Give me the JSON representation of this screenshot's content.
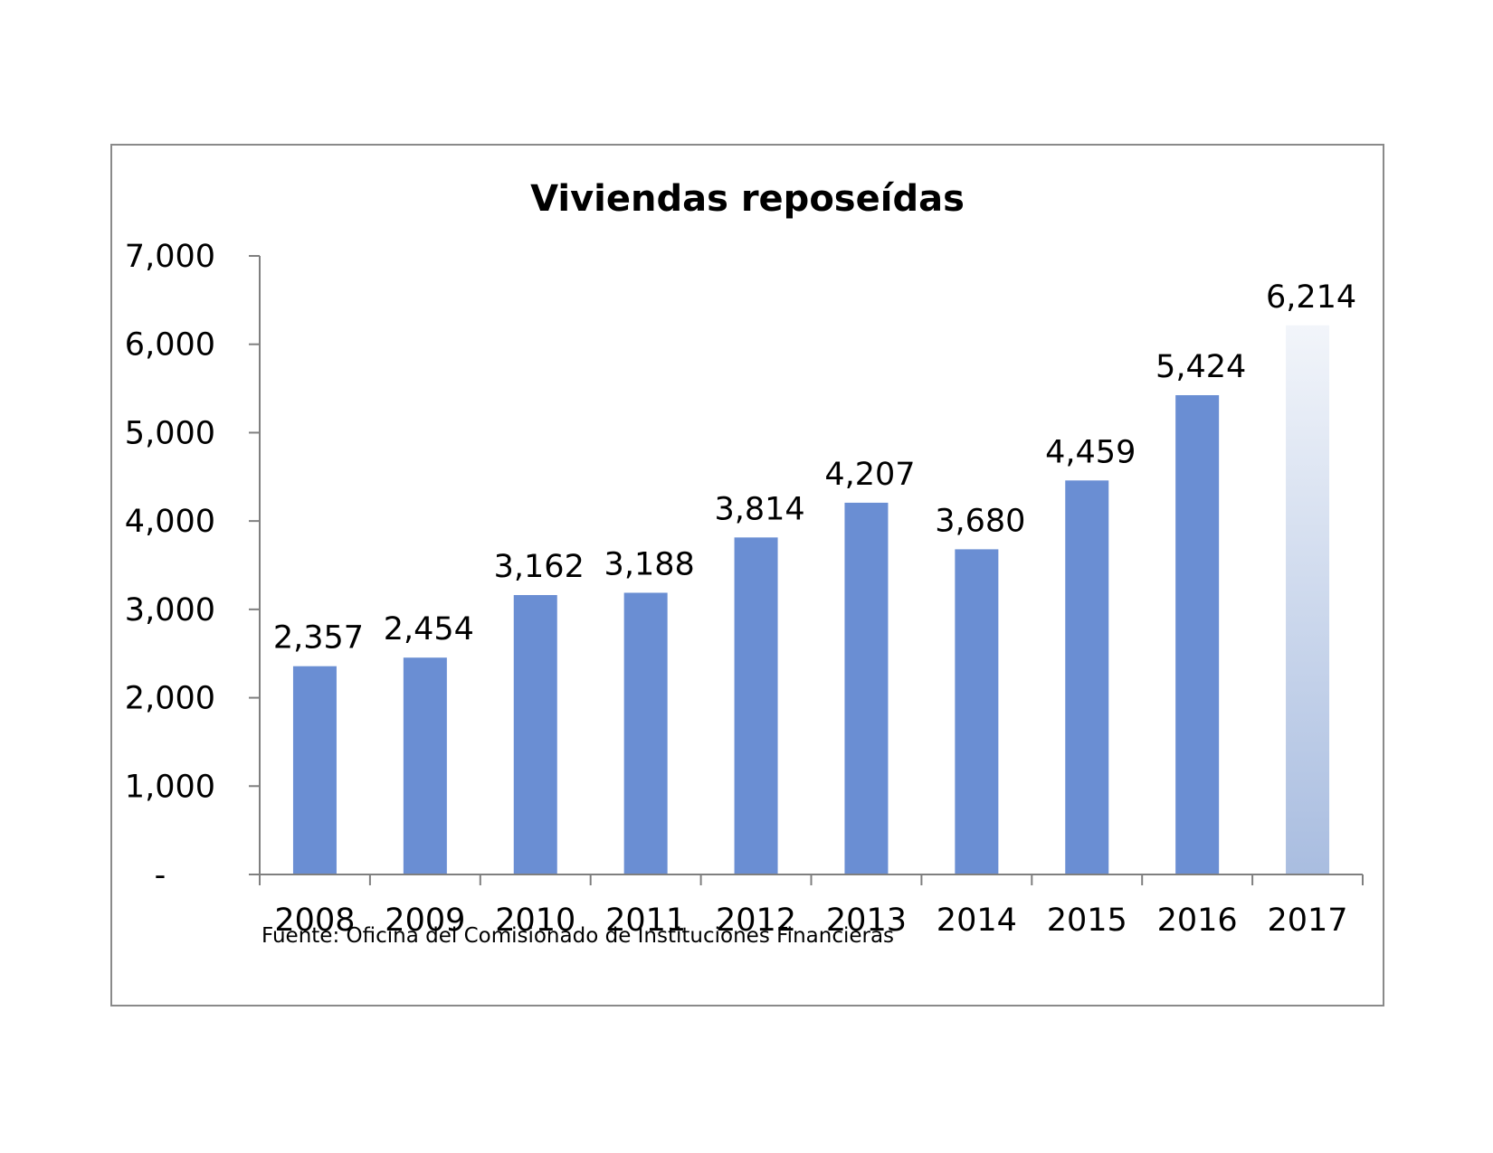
{
  "chart_data": {
    "type": "bar",
    "title": "Viviendas reposeídas",
    "xlabel": "",
    "ylabel": "",
    "categories": [
      "2008",
      "2009",
      "2010",
      "2011",
      "2012",
      "2013",
      "2014",
      "2015",
      "2016",
      "2017"
    ],
    "values": [
      2357,
      2454,
      3162,
      3188,
      3814,
      4207,
      3680,
      4459,
      5424,
      6214
    ],
    "data_labels": [
      "2,357",
      "2,454",
      "3,162",
      "3,188",
      "3,814",
      "4,207",
      "3,680",
      "4,459",
      "5,424",
      "6,214"
    ],
    "ylim": [
      0,
      7000
    ],
    "y_ticks": [
      0,
      1000,
      2000,
      3000,
      4000,
      5000,
      6000,
      7000
    ],
    "y_tick_labels": [
      "-",
      "1,000",
      "2,000",
      "3,000",
      "4,000",
      "5,000",
      "6,000",
      "7,000"
    ],
    "grid": false,
    "legend": "none",
    "bar_color": "#6a8ed3",
    "highlight": {
      "category": "2017",
      "style": "gradient fade",
      "color_top": "#f2f5fa",
      "color_bottom": "#a9bde0"
    },
    "source": "Fuente: Oficina del Comisionado de Instituciones Financieras"
  }
}
